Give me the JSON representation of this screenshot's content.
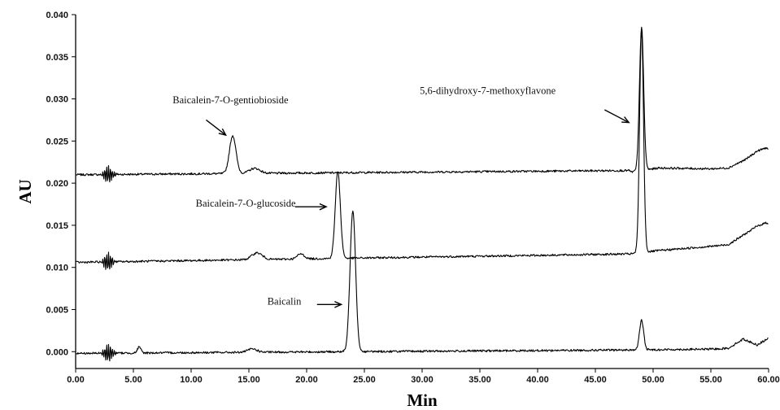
{
  "chart_data": {
    "type": "line",
    "xlabel": "Min",
    "ylabel": "AU",
    "xlim": [
      0,
      60
    ],
    "ylim": [
      -0.002,
      0.04
    ],
    "xticks": [
      0,
      5,
      10,
      15,
      20,
      25,
      30,
      35,
      40,
      45,
      50,
      55,
      60
    ],
    "xtick_labels": [
      "0.00",
      "5.00",
      "10.00",
      "15.00",
      "20.00",
      "25.00",
      "30.00",
      "35.00",
      "40.00",
      "45.00",
      "50.00",
      "55.00",
      "60.00"
    ],
    "yticks": [
      0.0,
      0.005,
      0.01,
      0.015,
      0.02,
      0.025,
      0.03,
      0.035,
      0.04
    ],
    "ytick_labels": [
      "0.000",
      "0.005",
      "0.010",
      "0.015",
      "0.020",
      "0.025",
      "0.030",
      "0.035",
      "0.040"
    ],
    "grid": false,
    "series": [
      {
        "baseline": 0.021,
        "drift": 0.0005,
        "peaks": [
          {
            "t": 13.6,
            "h": 0.0045,
            "w": 0.28
          },
          {
            "t": 15.5,
            "h": 0.0006,
            "w": 0.45
          },
          {
            "t": 49.0,
            "h": 0.017,
            "w": 0.18
          }
        ],
        "tail": [
          {
            "t": 48.0,
            "v": 0.0213
          },
          {
            "t": 50.5,
            "v": 0.0218
          },
          {
            "t": 55.0,
            "v": 0.0217
          },
          {
            "t": 56.5,
            "v": 0.0218
          },
          {
            "t": 58.0,
            "v": 0.0228
          },
          {
            "t": 59.0,
            "v": 0.0238
          },
          {
            "t": 59.8,
            "v": 0.0242
          },
          {
            "t": 60.0,
            "v": 0.024
          }
        ]
      },
      {
        "baseline": 0.0106,
        "drift": 0.001,
        "peaks": [
          {
            "t": 15.7,
            "h": 0.0008,
            "w": 0.45
          },
          {
            "t": 19.5,
            "h": 0.0006,
            "w": 0.3
          },
          {
            "t": 22.7,
            "h": 0.0103,
            "w": 0.22
          },
          {
            "t": 49.0,
            "h": 0.0265,
            "w": 0.17
          }
        ],
        "tail": [
          {
            "t": 48.0,
            "v": 0.0116
          },
          {
            "t": 50.5,
            "v": 0.012
          },
          {
            "t": 55.0,
            "v": 0.0125
          },
          {
            "t": 56.5,
            "v": 0.0127
          },
          {
            "t": 58.0,
            "v": 0.014
          },
          {
            "t": 59.0,
            "v": 0.0149
          },
          {
            "t": 59.8,
            "v": 0.0153
          },
          {
            "t": 60.0,
            "v": 0.0152
          }
        ]
      },
      {
        "baseline": -0.0002,
        "drift": 0.0004,
        "peaks": [
          {
            "t": 5.5,
            "h": 0.0007,
            "w": 0.15
          },
          {
            "t": 15.3,
            "h": 0.0004,
            "w": 0.4
          },
          {
            "t": 24.0,
            "h": 0.0168,
            "w": 0.24
          },
          {
            "t": 49.0,
            "h": 0.0035,
            "w": 0.18
          }
        ],
        "tail": [
          {
            "t": 48.0,
            "v": 0.0002
          },
          {
            "t": 55.0,
            "v": 0.0003
          },
          {
            "t": 56.5,
            "v": 0.0004
          },
          {
            "t": 57.8,
            "v": 0.0015
          },
          {
            "t": 59.0,
            "v": 0.0008
          },
          {
            "t": 60.0,
            "v": 0.0016
          }
        ]
      }
    ],
    "annotations": [
      {
        "text": "Baicalein-7-O-gentiobioside",
        "tx": 8.4,
        "ty": 0.0295,
        "arrow_from": [
          11.3,
          0.0275
        ],
        "arrow_to": [
          13.0,
          0.0257
        ]
      },
      {
        "text": "Baicalein-7-O-glucoside",
        "tx": 10.4,
        "ty": 0.0172,
        "arrow_from": [
          19.0,
          0.0172
        ],
        "arrow_to": [
          21.7,
          0.0172
        ]
      },
      {
        "text": "Baicalin",
        "tx": 16.6,
        "ty": 0.0056,
        "arrow_from": [
          20.9,
          0.0056
        ],
        "arrow_to": [
          23.0,
          0.0056
        ]
      },
      {
        "text": "5,6-dihydroxy-7-methoxyflavone",
        "tx": 29.8,
        "ty": 0.0306,
        "arrow_from": [
          45.8,
          0.0287
        ],
        "arrow_to": [
          47.9,
          0.0272
        ]
      }
    ]
  }
}
